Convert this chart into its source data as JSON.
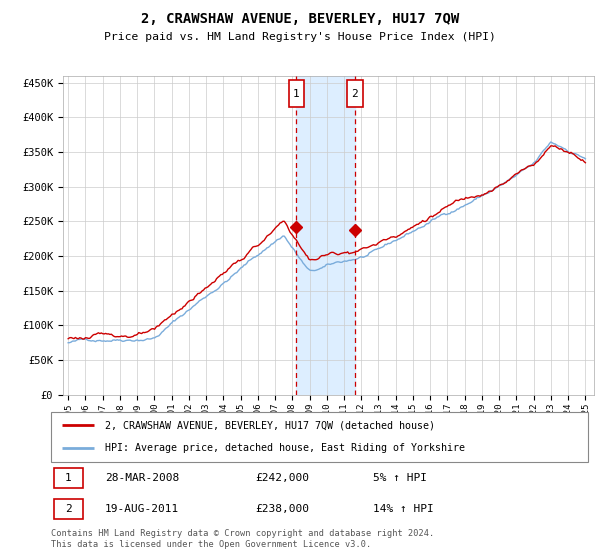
{
  "title": "2, CRAWSHAW AVENUE, BEVERLEY, HU17 7QW",
  "subtitle": "Price paid vs. HM Land Registry's House Price Index (HPI)",
  "yticks": [
    0,
    50000,
    100000,
    150000,
    200000,
    250000,
    300000,
    350000,
    400000,
    450000
  ],
  "ytick_labels": [
    "£0",
    "£50K",
    "£100K",
    "£150K",
    "£200K",
    "£250K",
    "£300K",
    "£350K",
    "£400K",
    "£450K"
  ],
  "ylim": [
    0,
    460000
  ],
  "xlim_start": 1994.7,
  "xlim_end": 2025.5,
  "sale1_x": 2008.23,
  "sale1_y": 242000,
  "sale1_label": "1",
  "sale1_date": "28-MAR-2008",
  "sale1_price": "£242,000",
  "sale1_hpi": "5% ↑ HPI",
  "sale2_x": 2011.63,
  "sale2_y": 238000,
  "sale2_label": "2",
  "sale2_date": "19-AUG-2011",
  "sale2_price": "£238,000",
  "sale2_hpi": "14% ↑ HPI",
  "hpi_color": "#7aacdb",
  "property_color": "#cc0000",
  "shade_color": "#ddeeff",
  "legend1": "2, CRAWSHAW AVENUE, BEVERLEY, HU17 7QW (detached house)",
  "legend2": "HPI: Average price, detached house, East Riding of Yorkshire",
  "footnote": "Contains HM Land Registry data © Crown copyright and database right 2024.\nThis data is licensed under the Open Government Licence v3.0."
}
